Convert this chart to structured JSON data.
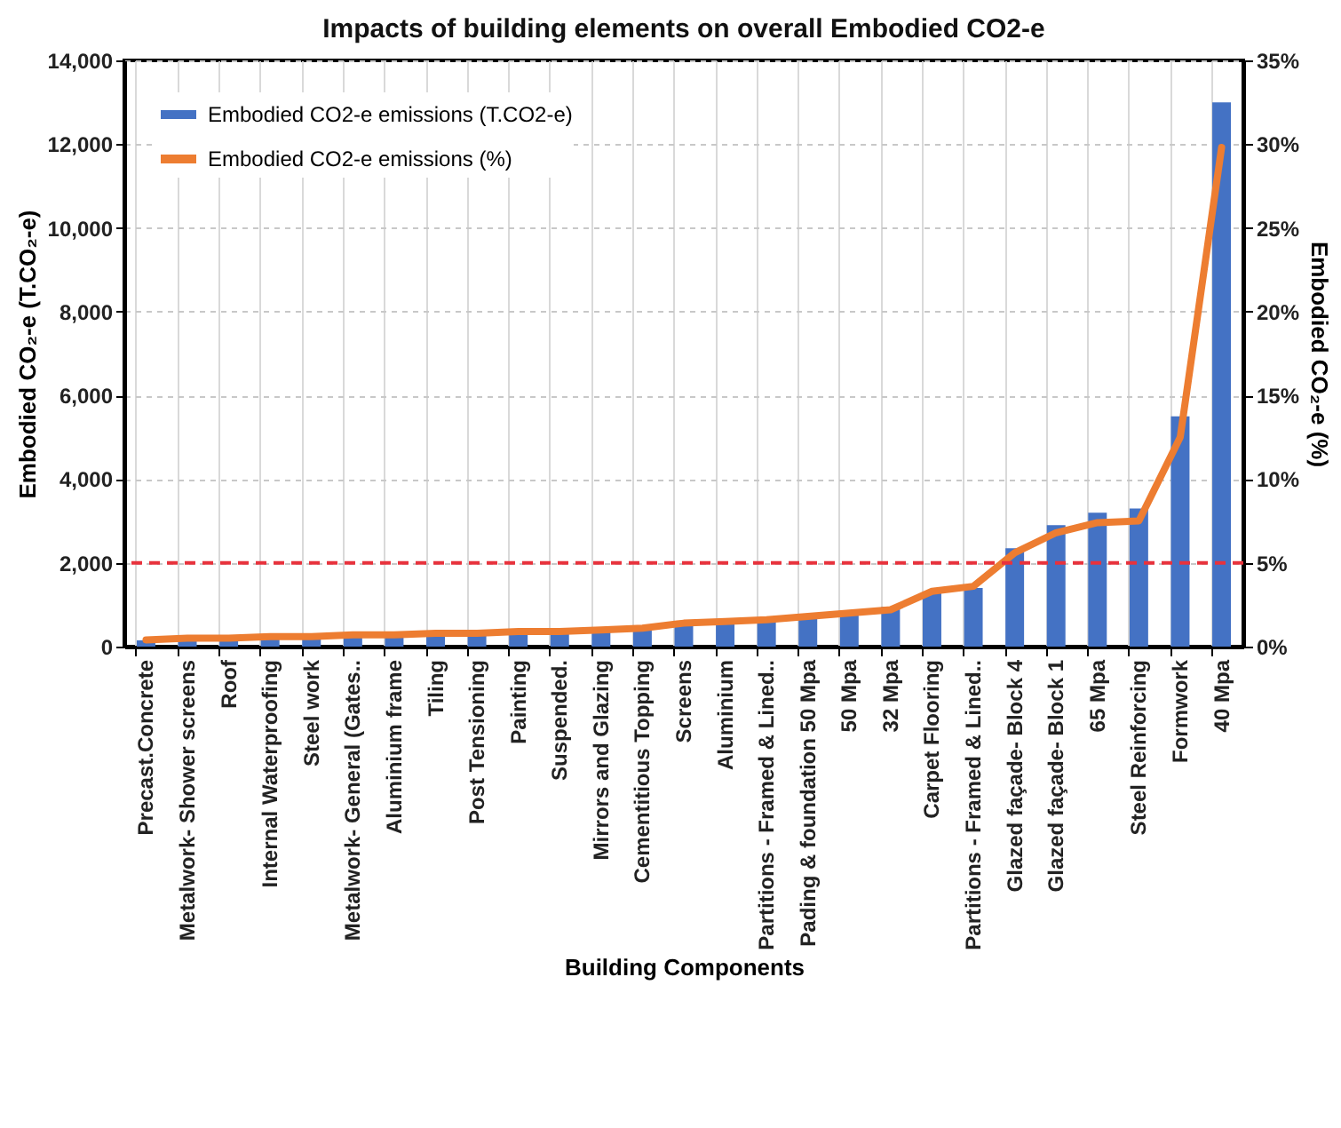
{
  "chart_data": {
    "type": "bar",
    "title": "Impacts of building elements on overall Embodied CO2-e",
    "xlabel": "Building Components",
    "ylabel": "Embodied CO₂-e  (T.CO₂-e)",
    "y2label": "Embodied CO₂-e (%)",
    "categories": [
      "Precast.Concrete",
      "Metalwork- Shower screens",
      "Roof",
      "Internal Waterproofing",
      "Steel work",
      "Metalwork- General (Gates..",
      "Aluminium frame",
      "Tiling",
      "Post Tensioning",
      "Painting",
      "Suspended.",
      "Mirrors and Glazing",
      "Cementitious Topping",
      "Screens",
      "Aluminium",
      "Partitions - Framed & Lined..",
      "Pading & foundation 50 Mpa",
      "50 Mpa",
      "32 Mpa",
      "Carpet Flooring",
      "Partitions - Framed & Lined..",
      "Glazed façade- Block 4",
      "Glazed façade- Block 1",
      "65 Mpa",
      "Steel Reinforcing",
      "Formwork",
      "40 Mpa"
    ],
    "series": [
      {
        "name": "Embodied CO2-e emissions (T.CO2-e)",
        "color": "#4472c4",
        "values": [
          150,
          180,
          200,
          220,
          250,
          280,
          300,
          320,
          340,
          360,
          380,
          420,
          460,
          600,
          640,
          660,
          750,
          850,
          950,
          1300,
          1400,
          2350,
          2900,
          3200,
          3300,
          5500,
          13000
        ]
      },
      {
        "name": "Embodied CO2-e emissions (%)",
        "type": "line",
        "axis": "y2",
        "color": "#ed7d31",
        "values": [
          0.4,
          0.5,
          0.5,
          0.6,
          0.6,
          0.7,
          0.7,
          0.8,
          0.8,
          0.9,
          0.9,
          1.0,
          1.1,
          1.4,
          1.5,
          1.6,
          1.8,
          2.0,
          2.2,
          3.3,
          3.6,
          5.6,
          6.8,
          7.4,
          7.5,
          12.5,
          29.8
        ]
      }
    ],
    "ylim": [
      0,
      14000
    ],
    "yticks": [
      {
        "value": 0,
        "label": "0"
      },
      {
        "value": 2000,
        "label": "2,000"
      },
      {
        "value": 4000,
        "label": "4,000"
      },
      {
        "value": 6000,
        "label": "6,000"
      },
      {
        "value": 8000,
        "label": "8,000"
      },
      {
        "value": 10000,
        "label": "10,000"
      },
      {
        "value": 12000,
        "label": "12,000"
      },
      {
        "value": 14000,
        "label": "14,000"
      }
    ],
    "y2lim": [
      0,
      35
    ],
    "y2ticks": [
      {
        "value": 0,
        "label": "0%"
      },
      {
        "value": 5,
        "label": "5%"
      },
      {
        "value": 10,
        "label": "10%"
      },
      {
        "value": 15,
        "label": "15%"
      },
      {
        "value": 20,
        "label": "20%"
      },
      {
        "value": 25,
        "label": "25%"
      },
      {
        "value": 30,
        "label": "30%"
      },
      {
        "value": 35,
        "label": "35%"
      }
    ],
    "ref_lines": [
      {
        "axis": "y2",
        "value": 5,
        "color": "#e8323c",
        "line_style": "dashed"
      }
    ],
    "grid": true,
    "legend": "top left",
    "marker": "none",
    "line_style": "solid"
  }
}
